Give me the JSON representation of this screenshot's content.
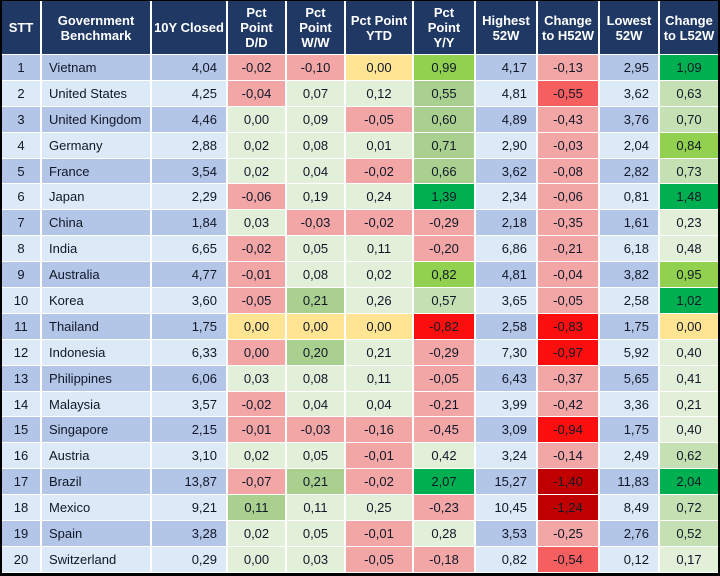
{
  "palette": {
    "headerBg": "#1F3864",
    "headerText": "#FFFFFF",
    "bandOdd": "#B4C6E7",
    "bandEven": "#DCE9F7",
    "grid": "#FFFFFF",
    "frame": "#000000",
    "text": "#101828",
    "pink": "#F3A6A6",
    "red": "#FB0E0E",
    "red2": "#F55F5F",
    "redDark": "#C00000",
    "yellow": "#FFE593",
    "g1": "#E2EFD9",
    "g2": "#C5E0B3",
    "g3": "#A9D08E",
    "g4": "#92D050",
    "g5": "#00B050"
  },
  "table": {
    "columns": [
      {
        "key": "stt",
        "label": "STT"
      },
      {
        "key": "name",
        "label": "Government Benchmark"
      },
      {
        "key": "closed",
        "label": "10Y Closed"
      },
      {
        "key": "dd",
        "label": "Pct Point D/D"
      },
      {
        "key": "ww",
        "label": "Pct Point W/W"
      },
      {
        "key": "ytd",
        "label": "Pct Point YTD"
      },
      {
        "key": "yy",
        "label": "Pct Point Y/Y"
      },
      {
        "key": "high",
        "label": "Highest 52W"
      },
      {
        "key": "h52",
        "label": "Change to H52W"
      },
      {
        "key": "low",
        "label": "Lowest 52W"
      },
      {
        "key": "l52",
        "label": "Change to L52W"
      }
    ],
    "rows": [
      {
        "stt": "1",
        "name": "Vietnam",
        "closed": "4,04",
        "dd": [
          "-0,02",
          "pink"
        ],
        "ww": [
          "-0,10",
          "pink"
        ],
        "ytd": [
          "0,00",
          "yellow"
        ],
        "yy": [
          "0,99",
          "g4"
        ],
        "high": "4,17",
        "h52": [
          "-0,13",
          "pink"
        ],
        "low": "2,95",
        "l52": [
          "1,09",
          "g5"
        ]
      },
      {
        "stt": "2",
        "name": "United States",
        "closed": "4,25",
        "dd": [
          "-0,04",
          "pink"
        ],
        "ww": [
          "0,07",
          "g1"
        ],
        "ytd": [
          "0,12",
          "g1"
        ],
        "yy": [
          "0,55",
          "g3"
        ],
        "high": "4,81",
        "h52": [
          "-0,55",
          "red2"
        ],
        "low": "3,62",
        "l52": [
          "0,63",
          "g2"
        ]
      },
      {
        "stt": "3",
        "name": "United Kingdom",
        "closed": "4,46",
        "dd": [
          "0,00",
          "g1"
        ],
        "ww": [
          "0,09",
          "g1"
        ],
        "ytd": [
          "-0,05",
          "pink"
        ],
        "yy": [
          "0,60",
          "g3"
        ],
        "high": "4,89",
        "h52": [
          "-0,43",
          "pink"
        ],
        "low": "3,76",
        "l52": [
          "0,70",
          "g2"
        ]
      },
      {
        "stt": "4",
        "name": "Germany",
        "closed": "2,88",
        "dd": [
          "0,02",
          "g1"
        ],
        "ww": [
          "0,08",
          "g1"
        ],
        "ytd": [
          "0,01",
          "g1"
        ],
        "yy": [
          "0,71",
          "g3"
        ],
        "high": "2,90",
        "h52": [
          "-0,03",
          "pink"
        ],
        "low": "2,04",
        "l52": [
          "0,84",
          "g4"
        ]
      },
      {
        "stt": "5",
        "name": "France",
        "closed": "3,54",
        "dd": [
          "0,02",
          "g1"
        ],
        "ww": [
          "0,04",
          "g1"
        ],
        "ytd": [
          "-0,02",
          "pink"
        ],
        "yy": [
          "0,66",
          "g3"
        ],
        "high": "3,62",
        "h52": [
          "-0,08",
          "pink"
        ],
        "low": "2,82",
        "l52": [
          "0,73",
          "g2"
        ]
      },
      {
        "stt": "6",
        "name": "Japan",
        "closed": "2,29",
        "dd": [
          "-0,06",
          "pink"
        ],
        "ww": [
          "0,19",
          "g1"
        ],
        "ytd": [
          "0,24",
          "g1"
        ],
        "yy": [
          "1,39",
          "g5"
        ],
        "high": "2,34",
        "h52": [
          "-0,06",
          "pink"
        ],
        "low": "0,81",
        "l52": [
          "1,48",
          "g5"
        ]
      },
      {
        "stt": "7",
        "name": "China",
        "closed": "1,84",
        "dd": [
          "0,03",
          "g1"
        ],
        "ww": [
          "-0,03",
          "pink"
        ],
        "ytd": [
          "-0,02",
          "pink"
        ],
        "yy": [
          "-0,29",
          "pink"
        ],
        "high": "2,18",
        "h52": [
          "-0,35",
          "pink"
        ],
        "low": "1,61",
        "l52": [
          "0,23",
          "g1"
        ]
      },
      {
        "stt": "8",
        "name": "India",
        "closed": "6,65",
        "dd": [
          "-0,02",
          "pink"
        ],
        "ww": [
          "0,05",
          "g1"
        ],
        "ytd": [
          "0,11",
          "g1"
        ],
        "yy": [
          "-0,20",
          "pink"
        ],
        "high": "6,86",
        "h52": [
          "-0,21",
          "pink"
        ],
        "low": "6,18",
        "l52": [
          "0,48",
          "g1"
        ]
      },
      {
        "stt": "9",
        "name": "Australia",
        "closed": "4,77",
        "dd": [
          "-0,01",
          "pink"
        ],
        "ww": [
          "0,08",
          "g1"
        ],
        "ytd": [
          "0,02",
          "g1"
        ],
        "yy": [
          "0,82",
          "g4"
        ],
        "high": "4,81",
        "h52": [
          "-0,04",
          "pink"
        ],
        "low": "3,82",
        "l52": [
          "0,95",
          "g4"
        ]
      },
      {
        "stt": "10",
        "name": "Korea",
        "closed": "3,60",
        "dd": [
          "-0,05",
          "pink"
        ],
        "ww": [
          "0,21",
          "g3"
        ],
        "ytd": [
          "0,26",
          "g1"
        ],
        "yy": [
          "0,57",
          "g2"
        ],
        "high": "3,65",
        "h52": [
          "-0,05",
          "pink"
        ],
        "low": "2,58",
        "l52": [
          "1,02",
          "g5"
        ]
      },
      {
        "stt": "11",
        "name": "Thailand",
        "closed": "1,75",
        "dd": [
          "0,00",
          "yellow"
        ],
        "ww": [
          "0,00",
          "yellow"
        ],
        "ytd": [
          "0,00",
          "yellow"
        ],
        "yy": [
          "-0,82",
          "red"
        ],
        "high": "2,58",
        "h52": [
          "-0,83",
          "red"
        ],
        "low": "1,75",
        "l52": [
          "0,00",
          "yellow"
        ]
      },
      {
        "stt": "12",
        "name": "Indonesia",
        "closed": "6,33",
        "dd": [
          "0,00",
          "pink"
        ],
        "ww": [
          "0,20",
          "g3"
        ],
        "ytd": [
          "0,21",
          "g1"
        ],
        "yy": [
          "-0,29",
          "pink"
        ],
        "high": "7,30",
        "h52": [
          "-0,97",
          "red"
        ],
        "low": "5,92",
        "l52": [
          "0,40",
          "g1"
        ]
      },
      {
        "stt": "13",
        "name": "Philippines",
        "closed": "6,06",
        "dd": [
          "0,03",
          "g1"
        ],
        "ww": [
          "0,08",
          "g1"
        ],
        "ytd": [
          "0,11",
          "g1"
        ],
        "yy": [
          "-0,05",
          "pink"
        ],
        "high": "6,43",
        "h52": [
          "-0,37",
          "pink"
        ],
        "low": "5,65",
        "l52": [
          "0,41",
          "g1"
        ]
      },
      {
        "stt": "14",
        "name": "Malaysia",
        "closed": "3,57",
        "dd": [
          "-0,02",
          "pink"
        ],
        "ww": [
          "0,04",
          "g1"
        ],
        "ytd": [
          "0,04",
          "g1"
        ],
        "yy": [
          "-0,21",
          "pink"
        ],
        "high": "3,99",
        "h52": [
          "-0,42",
          "pink"
        ],
        "low": "3,36",
        "l52": [
          "0,21",
          "g1"
        ]
      },
      {
        "stt": "15",
        "name": "Singapore",
        "closed": "2,15",
        "dd": [
          "-0,01",
          "pink"
        ],
        "ww": [
          "-0,03",
          "pink"
        ],
        "ytd": [
          "-0,16",
          "pink"
        ],
        "yy": [
          "-0,45",
          "pink"
        ],
        "high": "3,09",
        "h52": [
          "-0,94",
          "red"
        ],
        "low": "1,75",
        "l52": [
          "0,40",
          "g1"
        ]
      },
      {
        "stt": "16",
        "name": "Austria",
        "closed": "3,10",
        "dd": [
          "0,02",
          "g1"
        ],
        "ww": [
          "0,05",
          "g1"
        ],
        "ytd": [
          "-0,01",
          "pink"
        ],
        "yy": [
          "0,42",
          "g1"
        ],
        "high": "3,24",
        "h52": [
          "-0,14",
          "pink"
        ],
        "low": "2,49",
        "l52": [
          "0,62",
          "g2"
        ]
      },
      {
        "stt": "17",
        "name": "Brazil",
        "closed": "13,87",
        "dd": [
          "-0,07",
          "pink"
        ],
        "ww": [
          "0,21",
          "g3"
        ],
        "ytd": [
          "-0,02",
          "pink"
        ],
        "yy": [
          "2,07",
          "g5"
        ],
        "high": "15,27",
        "h52": [
          "-1,40",
          "redDark"
        ],
        "low": "11,83",
        "l52": [
          "2,04",
          "g5"
        ]
      },
      {
        "stt": "18",
        "name": "Mexico",
        "closed": "9,21",
        "dd": [
          "0,11",
          "g3"
        ],
        "ww": [
          "0,11",
          "g1"
        ],
        "ytd": [
          "0,25",
          "g1"
        ],
        "yy": [
          "-0,23",
          "pink"
        ],
        "high": "10,45",
        "h52": [
          "-1,24",
          "redDark"
        ],
        "low": "8,49",
        "l52": [
          "0,72",
          "g2"
        ]
      },
      {
        "stt": "19",
        "name": "Spain",
        "closed": "3,28",
        "dd": [
          "0,02",
          "g1"
        ],
        "ww": [
          "0,05",
          "g1"
        ],
        "ytd": [
          "-0,01",
          "pink"
        ],
        "yy": [
          "0,28",
          "g1"
        ],
        "high": "3,53",
        "h52": [
          "-0,25",
          "pink"
        ],
        "low": "2,76",
        "l52": [
          "0,52",
          "g2"
        ]
      },
      {
        "stt": "20",
        "name": "Switzerland",
        "closed": "0,29",
        "dd": [
          "0,00",
          "g1"
        ],
        "ww": [
          "0,03",
          "g1"
        ],
        "ytd": [
          "-0,05",
          "pink"
        ],
        "yy": [
          "-0,18",
          "pink"
        ],
        "high": "0,82",
        "h52": [
          "-0,54",
          "red2"
        ],
        "low": "0,12",
        "l52": [
          "0,17",
          "g1"
        ]
      }
    ]
  }
}
